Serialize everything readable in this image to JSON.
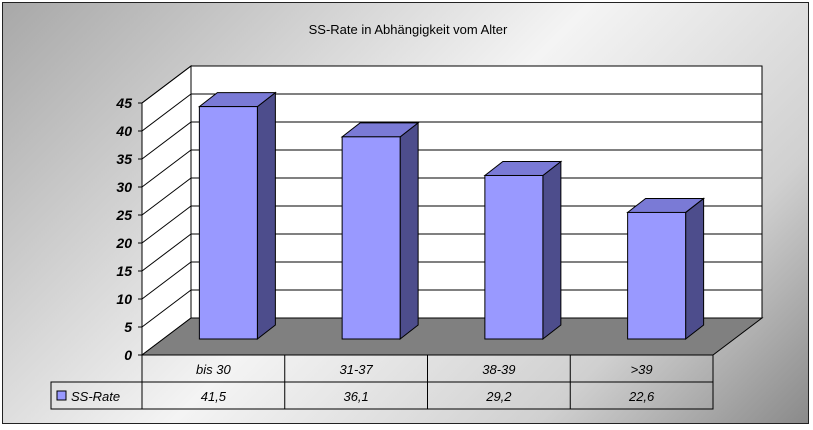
{
  "chart_data": {
    "type": "bar",
    "title": "SS-Rate in  Abhängigkeit vom Alter",
    "categories": [
      "bis 30",
      "31-37",
      "38-39",
      ">39"
    ],
    "series": [
      {
        "name": "SS-Rate",
        "values": [
          41.5,
          36.1,
          29.2,
          22.6
        ],
        "labels": [
          "41,5",
          "36,1",
          "29,2",
          "22,6"
        ]
      }
    ],
    "xlabel": "",
    "ylabel": "",
    "ylim": [
      0,
      45
    ],
    "yticks": [
      "0",
      "5",
      "10",
      "15",
      "20",
      "25",
      "30",
      "35",
      "40",
      "45"
    ],
    "grid": true,
    "legend": "data-table",
    "bar_style": "3d",
    "colors": {
      "bar_front": "#9999ff",
      "bar_top": "#7a7ad6",
      "bar_side": "#4d4d8c",
      "wall": "#ffffff",
      "floor": "#808080"
    }
  }
}
